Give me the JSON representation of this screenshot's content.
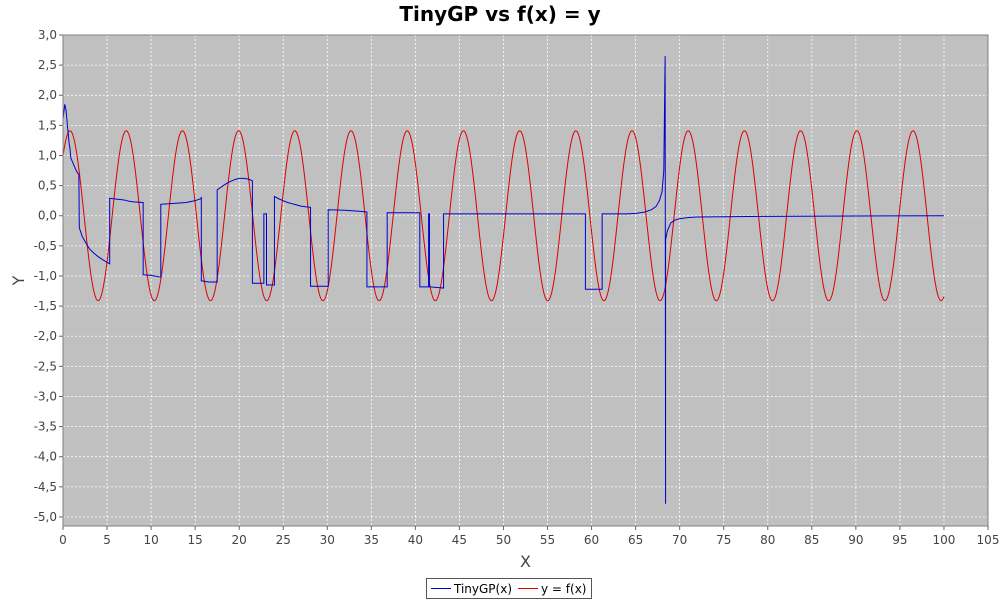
{
  "chart_data": {
    "type": "line",
    "title": "TinyGP vs f(x) = y",
    "xlabel": "X",
    "ylabel": "Y",
    "xlim": [
      0,
      105
    ],
    "ylim": [
      -5.15,
      3.0
    ],
    "xticks": [
      0,
      5,
      10,
      15,
      20,
      25,
      30,
      35,
      40,
      45,
      50,
      55,
      60,
      65,
      70,
      75,
      80,
      85,
      90,
      95,
      100,
      105
    ],
    "xtick_labels": [
      "0",
      "5",
      "10",
      "15",
      "20",
      "25",
      "30",
      "35",
      "40",
      "45",
      "50",
      "55",
      "60",
      "65",
      "70",
      "75",
      "80",
      "85",
      "90",
      "95",
      "100",
      "105"
    ],
    "yticks": [
      3.0,
      2.5,
      2.0,
      1.5,
      1.0,
      0.5,
      0.0,
      -0.5,
      -1.0,
      -1.5,
      -2.0,
      -2.5,
      -3.0,
      -3.5,
      -4.0,
      -4.5,
      -5.0
    ],
    "ytick_labels": [
      "3,0",
      "2,5",
      "2,0",
      "1,5",
      "1,0",
      "0,5",
      "0,0",
      "-0,5",
      "-1,0",
      "-1,5",
      "-2,0",
      "-2,5",
      "-3,0",
      "-3,5",
      "-4,0",
      "-4,5",
      "-5,0"
    ],
    "grid": true,
    "plot_background": "#c0c0c0",
    "legend_position": "bottom-center",
    "series": [
      {
        "name": "TinyGP(x)",
        "color": "#0000cc",
        "points": [
          [
            0.0,
            1.6
          ],
          [
            0.2,
            1.85
          ],
          [
            0.35,
            1.75
          ],
          [
            0.5,
            1.5
          ],
          [
            0.7,
            1.2
          ],
          [
            0.8,
            1.1
          ],
          [
            0.9,
            0.95
          ],
          [
            1.0,
            0.92
          ],
          [
            1.2,
            0.85
          ],
          [
            1.5,
            0.75
          ],
          [
            1.8,
            0.68
          ],
          [
            1.85,
            -0.2
          ],
          [
            2.2,
            -0.35
          ],
          [
            2.6,
            -0.45
          ],
          [
            3.0,
            -0.55
          ],
          [
            3.5,
            -0.62
          ],
          [
            4.0,
            -0.68
          ],
          [
            4.5,
            -0.73
          ],
          [
            5.3,
            -0.8
          ],
          [
            5.3,
            0.29
          ],
          [
            5.8,
            0.28
          ],
          [
            6.5,
            0.27
          ],
          [
            7.0,
            0.26
          ],
          [
            7.5,
            0.24
          ],
          [
            8.0,
            0.23
          ],
          [
            9.1,
            0.22
          ],
          [
            9.1,
            -0.98
          ],
          [
            10.0,
            -0.99
          ],
          [
            11.1,
            -1.02
          ],
          [
            11.1,
            0.19
          ],
          [
            12.0,
            0.2
          ],
          [
            13.0,
            0.21
          ],
          [
            14.0,
            0.22
          ],
          [
            15.0,
            0.25
          ],
          [
            15.6,
            0.28
          ],
          [
            15.7,
            0.3
          ],
          [
            15.7,
            -1.08
          ],
          [
            16.5,
            -1.1
          ],
          [
            17.5,
            -1.1
          ],
          [
            17.5,
            0.43
          ],
          [
            18.0,
            0.48
          ],
          [
            18.5,
            0.53
          ],
          [
            19.0,
            0.57
          ],
          [
            19.5,
            0.6
          ],
          [
            20.0,
            0.62
          ],
          [
            20.5,
            0.62
          ],
          [
            21.0,
            0.61
          ],
          [
            21.5,
            0.58
          ],
          [
            21.5,
            -1.12
          ],
          [
            22.8,
            -1.12
          ],
          [
            22.8,
            0.03
          ],
          [
            23.1,
            0.03
          ],
          [
            23.1,
            -1.15
          ],
          [
            24.0,
            -1.15
          ],
          [
            24.0,
            0.32
          ],
          [
            24.5,
            0.28
          ],
          [
            25.0,
            0.25
          ],
          [
            25.5,
            0.22
          ],
          [
            26.0,
            0.2
          ],
          [
            26.5,
            0.18
          ],
          [
            27.0,
            0.16
          ],
          [
            27.5,
            0.15
          ],
          [
            28.1,
            0.14
          ],
          [
            28.1,
            -1.17
          ],
          [
            30.1,
            -1.17
          ],
          [
            30.1,
            0.1
          ],
          [
            32.0,
            0.09
          ],
          [
            34.0,
            0.07
          ],
          [
            34.5,
            0.06
          ],
          [
            34.5,
            -1.18
          ],
          [
            36.8,
            -1.18
          ],
          [
            36.8,
            0.05
          ],
          [
            40.5,
            0.05
          ],
          [
            40.5,
            -1.18
          ],
          [
            41.5,
            -1.18
          ],
          [
            41.5,
            0.03
          ],
          [
            41.6,
            0.03
          ],
          [
            41.6,
            -1.18
          ],
          [
            43.2,
            -1.2
          ],
          [
            43.2,
            0.03
          ],
          [
            59.3,
            0.03
          ],
          [
            59.3,
            -1.22
          ],
          [
            61.2,
            -1.22
          ],
          [
            61.2,
            0.03
          ],
          [
            64.0,
            0.03
          ],
          [
            65.0,
            0.04
          ],
          [
            66.0,
            0.06
          ],
          [
            66.8,
            0.1
          ],
          [
            67.3,
            0.15
          ],
          [
            67.7,
            0.25
          ],
          [
            68.0,
            0.4
          ],
          [
            68.2,
            0.75
          ],
          [
            68.35,
            2.65
          ],
          [
            68.4,
            -4.78
          ],
          [
            68.4,
            -0.4
          ],
          [
            68.6,
            -0.25
          ],
          [
            69.0,
            -0.12
          ],
          [
            69.5,
            -0.07
          ],
          [
            70.0,
            -0.05
          ],
          [
            71.0,
            -0.03
          ],
          [
            72.0,
            -0.02
          ],
          [
            80.0,
            -0.01
          ],
          [
            90.0,
            -0.005
          ],
          [
            100.0,
            0.0
          ]
        ]
      },
      {
        "name": "y = f(x)",
        "color": "#dd0000",
        "function": {
          "amplitude": 1.41,
          "omega": 0.9849,
          "phase": 0.7854,
          "x_start": 0.0,
          "x_end": 100.0
        }
      }
    ]
  }
}
